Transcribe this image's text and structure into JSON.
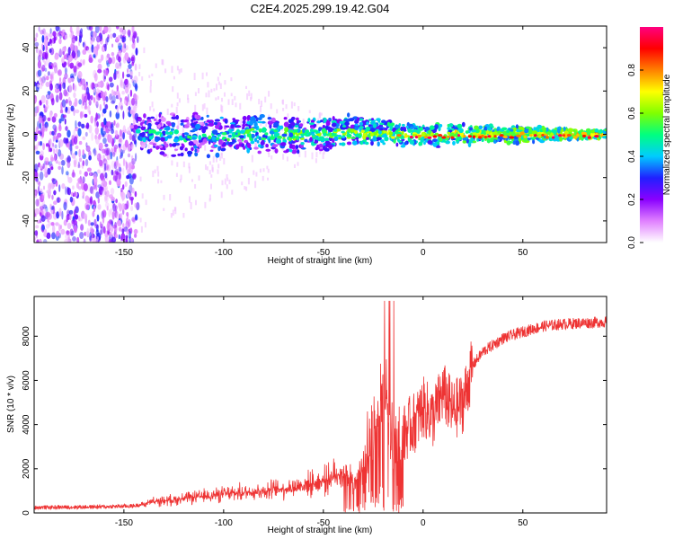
{
  "title": "C2E4.2025.299.19.42.G04",
  "chart_data": [
    {
      "type": "heatmap",
      "xlabel": "Height of straight line (km)",
      "ylabel": "Frequency (Hz)",
      "xlim": [
        -195,
        92
      ],
      "ylim": [
        -50,
        50
      ],
      "xticks": [
        -150,
        -100,
        -50,
        0,
        50
      ],
      "yticks": [
        -40,
        -20,
        0,
        20,
        40
      ],
      "colorbar": {
        "label": "Normalized spectral amplitude",
        "range": [
          0,
          1
        ],
        "ticks": [
          "0.0",
          "0.2",
          "0.4",
          "0.6",
          "0.8"
        ],
        "colors": [
          "#ffffff",
          "#e080ff",
          "#8a00ff",
          "#2020ff",
          "#00ccff",
          "#00ff80",
          "#80ff00",
          "#ffff00",
          "#ff8000",
          "#ff0000",
          "#ff0080"
        ]
      },
      "features": {
        "noise_region_x": [
          -195,
          -143
        ],
        "band_center_hz": 0,
        "band_halfwidth_hz": [
          10,
          2
        ],
        "peak_x": [
          -15,
          88
        ]
      }
    },
    {
      "type": "line",
      "xlabel": "Height of straight line (km)",
      "ylabel": "SNR (10 * v/v)",
      "xlim": [
        -195,
        92
      ],
      "ylim": [
        0,
        9800
      ],
      "xticks": [
        -150,
        -100,
        -50,
        0,
        50
      ],
      "yticks": [
        0,
        2000,
        4000,
        6000,
        8000
      ],
      "series": [
        {
          "name": "SNR",
          "color": "#ee3333",
          "x": [
            -195,
            -180,
            -160,
            -145,
            -135,
            -120,
            -100,
            -80,
            -65,
            -50,
            -42,
            -35,
            -28,
            -25,
            -22,
            -20,
            -18,
            -15,
            -12,
            -8,
            -3,
            0,
            5,
            10,
            15,
            20,
            25,
            30,
            40,
            50,
            60,
            70,
            80,
            92
          ],
          "y": [
            250,
            260,
            280,
            320,
            500,
            650,
            850,
            1000,
            1150,
            1450,
            1800,
            1400,
            2200,
            3500,
            4500,
            6000,
            5000,
            2800,
            3000,
            3800,
            4200,
            4800,
            4300,
            5500,
            4600,
            5000,
            6700,
            7300,
            7900,
            8200,
            8450,
            8550,
            8600,
            8650
          ]
        }
      ]
    }
  ]
}
